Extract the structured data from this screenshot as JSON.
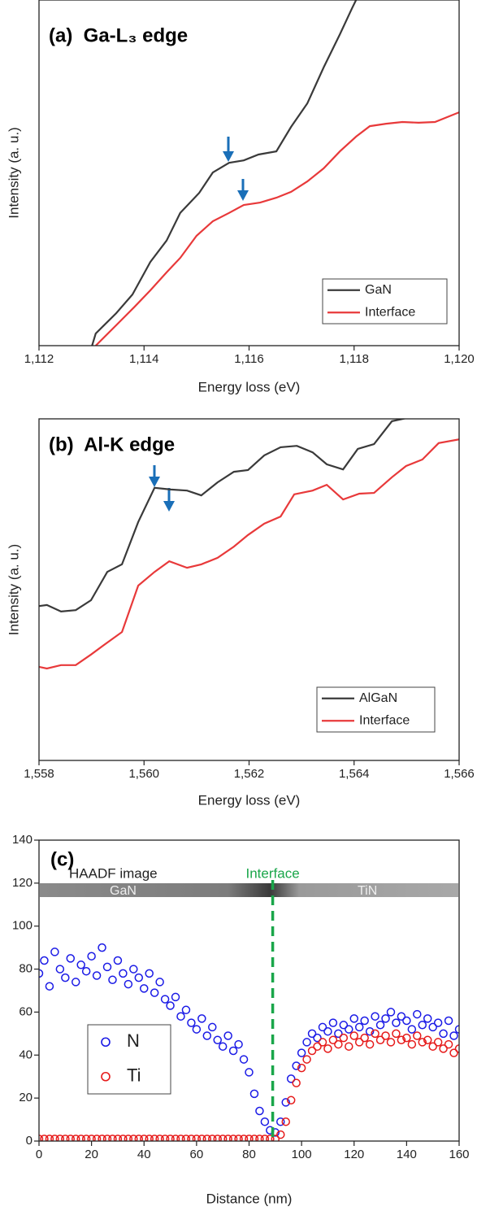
{
  "chart_data": [
    {
      "type": "line",
      "title": "(a)  Ga-L₃ edge",
      "x_label": "Energy loss (eV)",
      "y_label": "Intensity (a. u.)",
      "xlim": [
        1112,
        1120
      ],
      "ylim": [
        0,
        100
      ],
      "xticks": [
        {
          "value": 1112,
          "label": "1,112"
        },
        {
          "value": 1114,
          "label": "1,114"
        },
        {
          "value": 1116,
          "label": "1,116"
        },
        {
          "value": 1118,
          "label": "1,118"
        },
        {
          "value": 1120,
          "label": "1,120"
        }
      ],
      "legend": "lower right",
      "series": [
        {
          "name": "GaN",
          "color": "#3a3a3a",
          "x": [
            1113.01,
            1113.08,
            1113.47,
            1113.78,
            1114.12,
            1114.43,
            1114.69,
            1115.05,
            1115.31,
            1115.62,
            1115.9,
            1116.18,
            1116.52,
            1116.8,
            1117.11,
            1117.42,
            1117.73,
            1117.96,
            1118.07
          ],
          "values": [
            0,
            3.5,
            9.4,
            14.8,
            24.2,
            30.4,
            38.4,
            44.2,
            50.1,
            52.9,
            53.6,
            55.3,
            56.2,
            63.3,
            70.1,
            80.5,
            90.1,
            97.6,
            101
          ]
        },
        {
          "name": "Interface",
          "color": "#e8393a",
          "x": [
            1113.08,
            1113.47,
            1113.81,
            1114.12,
            1114.43,
            1114.69,
            1115.0,
            1115.31,
            1115.62,
            1115.9,
            1116.21,
            1116.52,
            1116.8,
            1117.11,
            1117.42,
            1117.73,
            1118.04,
            1118.3,
            1118.61,
            1118.92,
            1119.23,
            1119.54,
            1120.0
          ],
          "values": [
            0,
            5.9,
            11.1,
            16.0,
            21.2,
            25.4,
            31.8,
            36.0,
            38.4,
            40.7,
            41.4,
            42.8,
            44.5,
            47.5,
            51.3,
            56.2,
            60.5,
            63.5,
            64.2,
            64.7,
            64.5,
            64.7,
            67.5
          ]
        }
      ]
    },
    {
      "type": "line",
      "title": "(b)  Al-K edge",
      "x_label": "Energy loss (eV)",
      "y_label": "Intensity (a. u.)",
      "xlim": [
        1558,
        1566
      ],
      "ylim": [
        0,
        100
      ],
      "xticks": [
        {
          "value": 1558,
          "label": "1,558"
        },
        {
          "value": 1560,
          "label": "1,560"
        },
        {
          "value": 1562,
          "label": "1,562"
        },
        {
          "value": 1564,
          "label": "1,564"
        },
        {
          "value": 1566,
          "label": "1,566"
        }
      ],
      "legend": "lower right",
      "series": [
        {
          "name": "AlGaN",
          "color": "#3a3a3a",
          "x": [
            1558.0,
            1558.15,
            1558.42,
            1558.7,
            1558.99,
            1559.3,
            1559.58,
            1559.89,
            1560.2,
            1560.51,
            1560.82,
            1561.09,
            1561.4,
            1561.71,
            1561.98,
            1562.29,
            1562.6,
            1562.91,
            1563.21,
            1563.48,
            1563.79,
            1564.07,
            1564.38,
            1564.72,
            1564.99,
            1565.3
          ],
          "values": [
            45.2,
            45.5,
            43.6,
            44.0,
            46.9,
            55.2,
            57.4,
            69.8,
            79.8,
            79.3,
            79.0,
            77.6,
            81.4,
            84.5,
            85.0,
            89.3,
            91.7,
            92.1,
            90.2,
            86.7,
            85.2,
            91.2,
            92.6,
            99.3,
            100.2,
            101.2
          ]
        },
        {
          "name": "Interface",
          "color": "#e8393a",
          "x": [
            1558.0,
            1558.15,
            1558.42,
            1558.7,
            1558.99,
            1559.3,
            1559.58,
            1559.89,
            1560.2,
            1560.48,
            1560.82,
            1561.09,
            1561.4,
            1561.71,
            1561.98,
            1562.29,
            1562.6,
            1562.86,
            1563.21,
            1563.48,
            1563.79,
            1564.1,
            1564.38,
            1564.72,
            1564.99,
            1565.3,
            1565.61,
            1566.0
          ],
          "values": [
            27.4,
            26.9,
            27.9,
            27.9,
            31.0,
            34.5,
            37.6,
            51.2,
            55.2,
            58.3,
            56.4,
            57.4,
            59.3,
            62.6,
            66.0,
            69.3,
            71.4,
            77.9,
            79.0,
            80.7,
            76.4,
            78.1,
            78.3,
            82.9,
            86.2,
            88.1,
            92.9,
            94.0
          ]
        }
      ]
    },
    {
      "type": "scatter",
      "title": "(c)",
      "x_label": "Distance (nm)",
      "xlim": [
        0,
        160
      ],
      "ylim": [
        0,
        140
      ],
      "xticks": [
        0,
        20,
        40,
        60,
        80,
        100,
        120,
        140,
        160
      ],
      "yticks": [
        0,
        20,
        40,
        60,
        80,
        100,
        120,
        140
      ],
      "legend": "lower left",
      "image_labels": [
        "HAADF image",
        "GaN",
        "TiN"
      ],
      "interface": {
        "text": "Interface",
        "x": 89
      },
      "x": [
        0,
        2,
        4,
        6,
        8,
        10,
        12,
        14,
        16,
        18,
        20,
        22,
        24,
        26,
        28,
        30,
        32,
        34,
        36,
        38,
        40,
        42,
        44,
        46,
        48,
        50,
        52,
        54,
        56,
        58,
        60,
        62,
        64,
        66,
        68,
        70,
        72,
        74,
        76,
        78,
        80,
        82,
        84,
        86,
        88,
        90,
        92,
        94,
        96,
        98,
        100,
        102,
        104,
        106,
        108,
        110,
        112,
        114,
        116,
        118,
        120,
        122,
        124,
        126,
        128,
        130,
        132,
        134,
        136,
        138,
        140,
        142,
        144,
        146,
        148,
        150,
        152,
        154,
        156,
        158,
        160
      ],
      "series": [
        {
          "name": "N",
          "color": "#1a1ae6",
          "values": [
            78,
            84,
            72,
            88,
            80,
            76,
            85,
            74,
            82,
            79,
            86,
            77,
            90,
            81,
            75,
            84,
            78,
            73,
            80,
            76,
            71,
            78,
            69,
            74,
            66,
            63,
            67,
            58,
            61,
            55,
            52,
            57,
            49,
            53,
            47,
            44,
            49,
            42,
            45,
            38,
            32,
            22,
            14,
            9,
            5,
            4,
            9,
            18,
            29,
            35,
            41,
            46,
            50,
            48,
            53,
            51,
            55,
            50,
            54,
            52,
            57,
            53,
            56,
            51,
            58,
            54,
            57,
            60,
            55,
            58,
            56,
            52,
            59,
            54,
            57,
            53,
            55,
            50,
            56,
            49,
            52
          ]
        },
        {
          "name": "Ti",
          "color": "#e61a1a",
          "values": [
            1,
            1,
            1,
            1,
            1,
            1,
            1,
            1,
            1,
            1,
            1,
            1,
            1,
            1,
            1,
            1,
            1,
            1,
            1,
            1,
            1,
            1,
            1,
            1,
            1,
            1,
            1,
            1,
            1,
            1,
            1,
            1,
            1,
            1,
            1,
            1,
            1,
            1,
            1,
            1,
            1,
            1,
            1,
            1,
            1,
            1,
            3,
            9,
            19,
            27,
            34,
            38,
            42,
            44,
            46,
            43,
            47,
            45,
            48,
            44,
            49,
            46,
            48,
            45,
            50,
            47,
            49,
            46,
            50,
            47,
            48,
            45,
            49,
            46,
            47,
            44,
            46,
            43,
            45,
            41,
            43
          ]
        }
      ]
    }
  ]
}
